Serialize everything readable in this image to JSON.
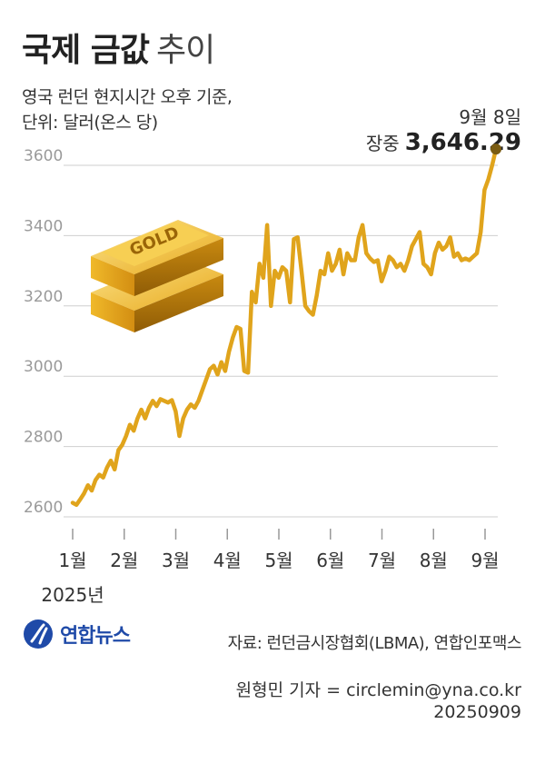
{
  "title_bold": "국제 금값",
  "title_light": "추이",
  "subtitle_line1": "영국 런던 현지시간 오후 기준,",
  "subtitle_line2": "단위: 달러(온스 당)",
  "callout_date": "9월 8일",
  "callout_label": "장중",
  "callout_value": "3,646.29",
  "year_label": "2025년",
  "gold_bar_text": "GOLD",
  "logo_text": "연합뉴스",
  "source": "자료: 런던금시장협회(LBMA), 연합인포맥스",
  "reporter": "원형민 기자 = circlemin@yna.co.kr",
  "date_stamp": "20250909",
  "colors": {
    "line": "#e0a41c",
    "grid": "#cfcfcf",
    "tick": "#9a9a9a",
    "logo": "#1f4aa8"
  },
  "chart_data": {
    "type": "line",
    "title": "국제 금값 추이",
    "xlabel": "",
    "ylabel": "",
    "x_ticks": [
      "1월",
      "2월",
      "3월",
      "4월",
      "5월",
      "6월",
      "7월",
      "8월",
      "9월"
    ],
    "y_ticks": [
      2600,
      2800,
      3000,
      3200,
      3400,
      3600
    ],
    "ylim": [
      2540,
      3650
    ],
    "grid": true,
    "series": [
      {
        "values": [
          2640,
          2634,
          2650,
          2667,
          2690,
          2675,
          2705,
          2720,
          2712,
          2740,
          2760,
          2735,
          2790,
          2805,
          2830,
          2862,
          2845,
          2880,
          2905,
          2880,
          2910,
          2930,
          2915,
          2935,
          2930,
          2925,
          2932,
          2900,
          2830,
          2880,
          2905,
          2920,
          2910,
          2930,
          2960,
          2990,
          3020,
          3030,
          3005,
          3040,
          3015,
          3070,
          3110,
          3140,
          3135,
          3015,
          3010,
          3240,
          3210,
          3320,
          3280,
          3430,
          3200,
          3300,
          3280,
          3310,
          3300,
          3210,
          3390,
          3395,
          3300,
          3200,
          3185,
          3175,
          3230,
          3300,
          3290,
          3350,
          3300,
          3320,
          3360,
          3290,
          3350,
          3330,
          3330,
          3395,
          3430,
          3350,
          3335,
          3325,
          3330,
          3270,
          3300,
          3340,
          3330,
          3310,
          3320,
          3300,
          3330,
          3370,
          3390,
          3410,
          3320,
          3310,
          3290,
          3350,
          3380,
          3360,
          3370,
          3395,
          3340,
          3350,
          3330,
          3335,
          3330,
          3340,
          3350,
          3410,
          3530,
          3560,
          3600,
          3646.29
        ]
      }
    ],
    "annotation": {
      "label": "9월 8일 장중",
      "value": 3646.29
    }
  }
}
